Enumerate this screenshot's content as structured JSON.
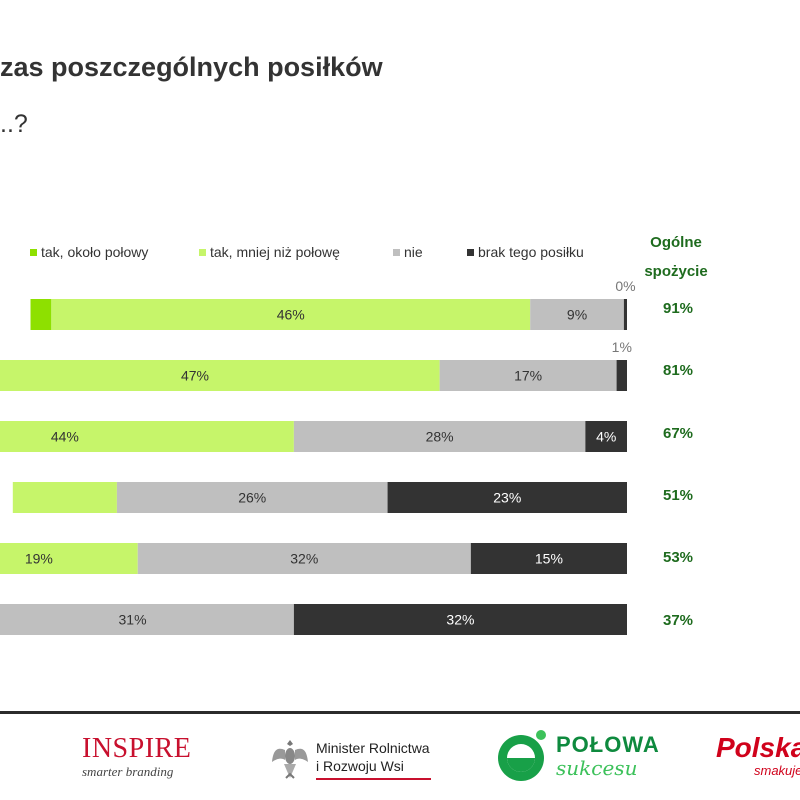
{
  "header": {
    "title": "zas poszczególnych posiłków",
    "subtitle": "..?"
  },
  "summary": {
    "header_line1": "Ogólne",
    "header_line2": "spożycie",
    "values": [
      "91%",
      "81%",
      "67%",
      "51%",
      "53%",
      "37%"
    ]
  },
  "chart_data": {
    "type": "bar",
    "orientation": "horizontal",
    "stacked": true,
    "legend_position": "top",
    "legend": [
      {
        "label": "tak, około połowy",
        "color": "#8ee000"
      },
      {
        "label": "tak, mniej niż połowę",
        "color": "#c6f56a"
      },
      {
        "label": "nie",
        "color": "#bfbfbf"
      },
      {
        "label": "brak tego posiłku",
        "color": "#333333"
      }
    ],
    "rows": [
      {
        "segments": [
          {
            "series": 0,
            "value": 2,
            "label": ""
          },
          {
            "series": 1,
            "value": 46,
            "label": "46%"
          },
          {
            "series": 2,
            "value": 9,
            "label": "9%"
          },
          {
            "series": 3,
            "value": 0.3,
            "label": "0%",
            "label_outside": true
          }
        ]
      },
      {
        "segments": [
          {
            "series": 1,
            "value": 47,
            "label": "47%"
          },
          {
            "series": 2,
            "value": 17,
            "label": "17%"
          },
          {
            "series": 3,
            "value": 1,
            "label": "1%",
            "label_outside": true
          }
        ]
      },
      {
        "segments": [
          {
            "series": 1,
            "value": 44,
            "label": "44%"
          },
          {
            "series": 2,
            "value": 28,
            "label": "28%"
          },
          {
            "series": 3,
            "value": 4,
            "label": "4%"
          }
        ]
      },
      {
        "segments": [
          {
            "series": 1,
            "value": 10,
            "label": ""
          },
          {
            "series": 2,
            "value": 26,
            "label": "26%"
          },
          {
            "series": 3,
            "value": 23,
            "label": "23%"
          }
        ]
      },
      {
        "segments": [
          {
            "series": 1,
            "value": 19,
            "label": "19%"
          },
          {
            "series": 2,
            "value": 32,
            "label": "32%"
          },
          {
            "series": 3,
            "value": 15,
            "label": "15%"
          }
        ]
      },
      {
        "segments": [
          {
            "series": 2,
            "value": 31,
            "label": "31%"
          },
          {
            "series": 3,
            "value": 32,
            "label": "32%"
          }
        ]
      }
    ]
  },
  "footer": {
    "inspire": {
      "name": "INSPIRE",
      "tagline": "smarter branding"
    },
    "ministry": {
      "line1": "Minister Rolnictwa",
      "line2": "i Rozwoju Wsi"
    },
    "polowa": {
      "line1": "POŁOWA",
      "line2": "sukcesu"
    },
    "polska": {
      "line1": "Polska",
      "line2": "smakuje"
    }
  }
}
